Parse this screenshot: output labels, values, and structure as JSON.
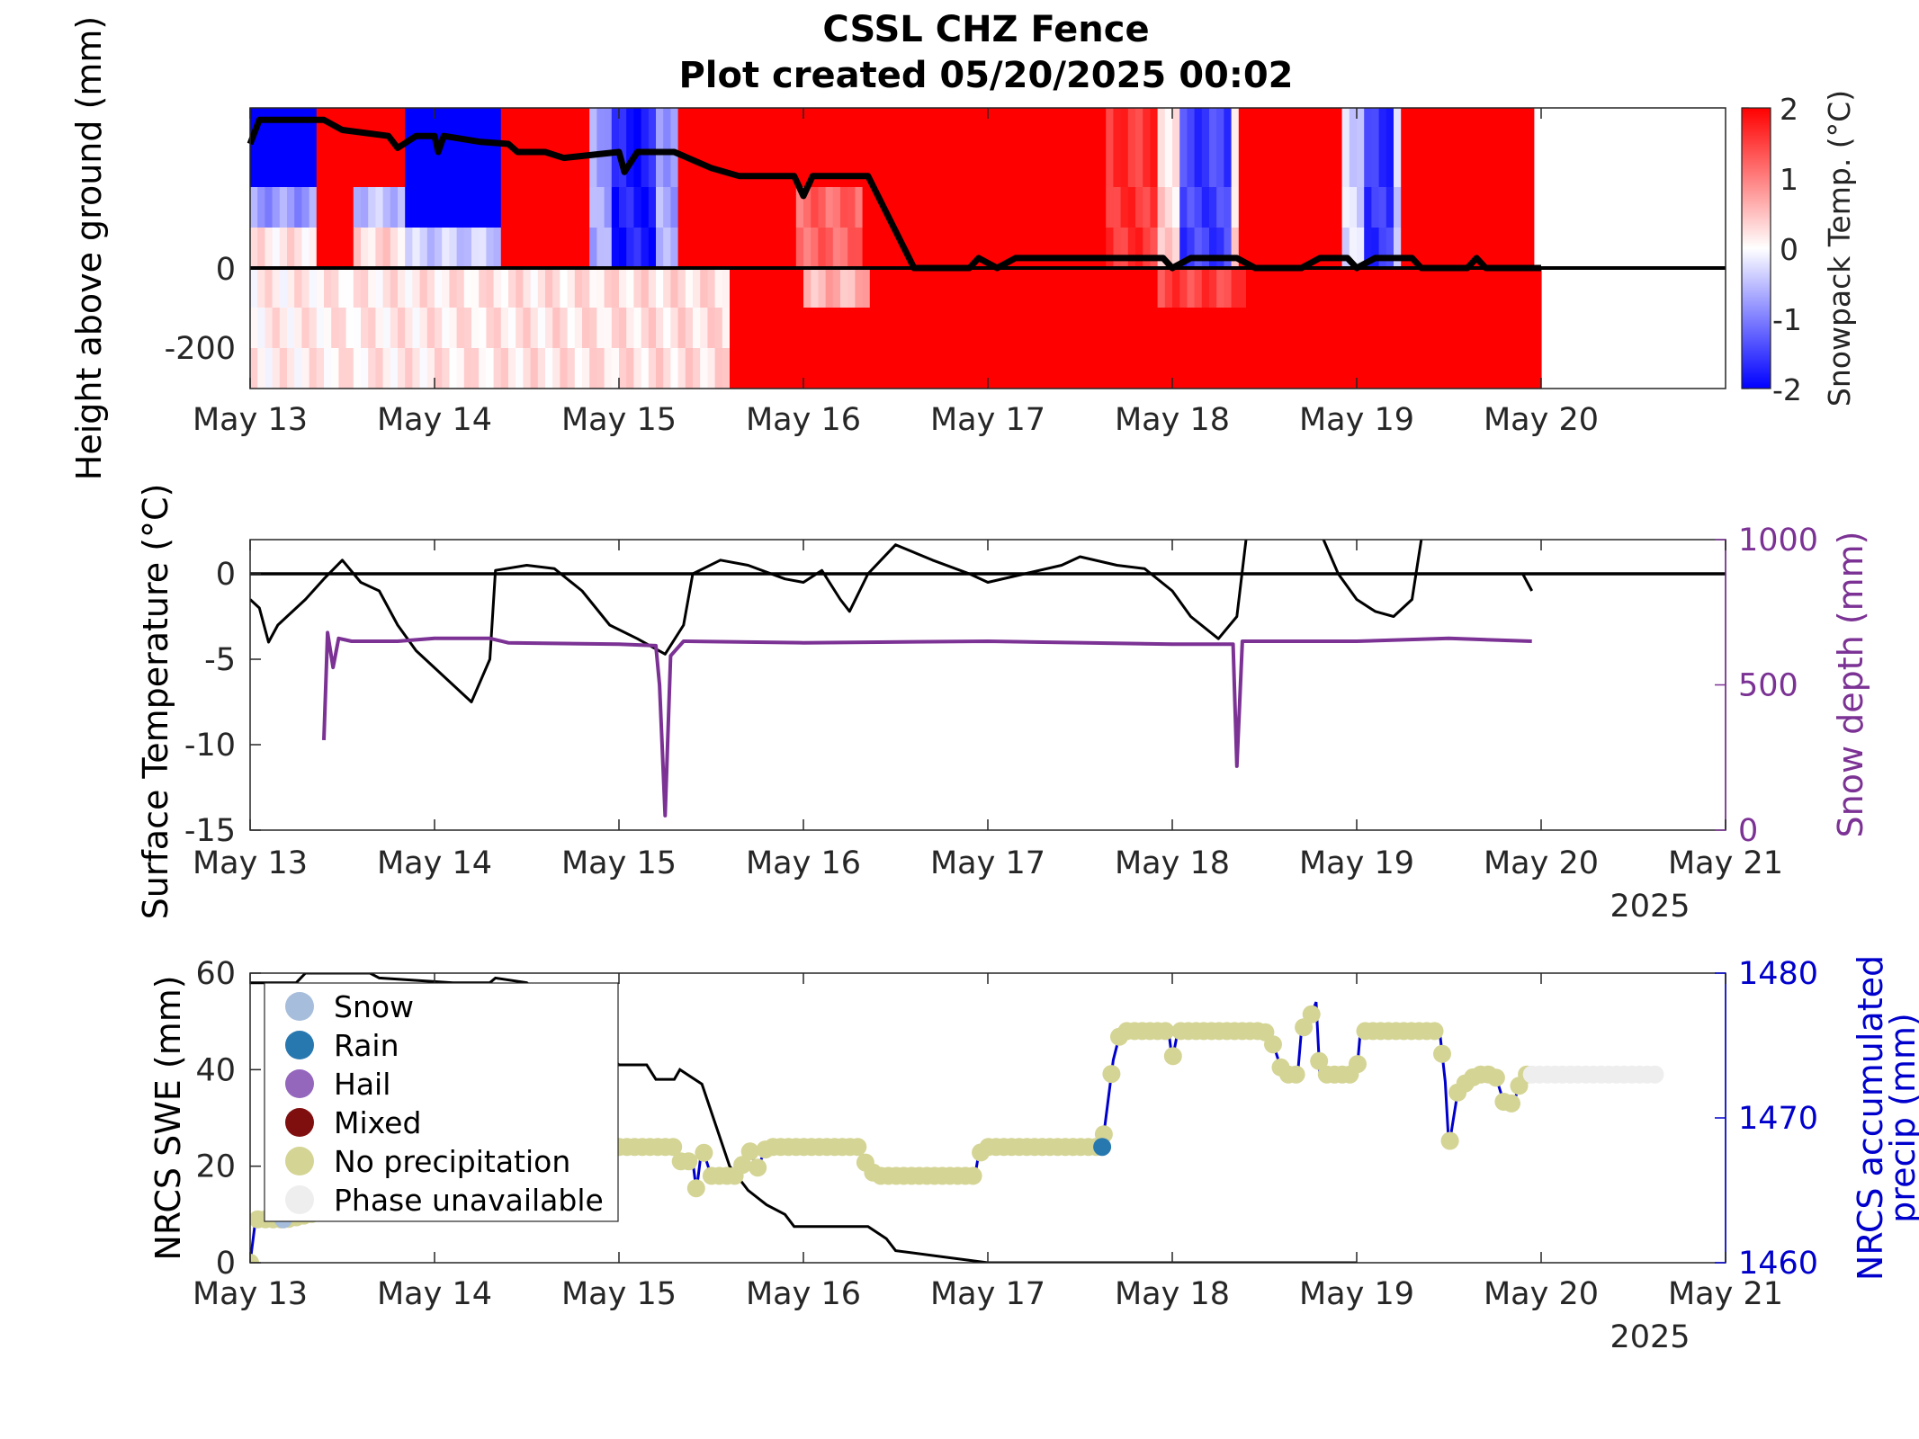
{
  "title_line1": "CSSL CHZ Fence",
  "title_line2": "Plot created 05/20/2025 00:02",
  "year_label": "2025",
  "colors": {
    "red": "#ff0000",
    "blue": "#0000ff",
    "purple": "#7b3294",
    "navy": "#0000cc",
    "black": "#000000"
  },
  "chart_data": [
    {
      "type": "heatmap",
      "ylabel": "Height above ground (mm)",
      "colorbar_label": "Snowpack Temp. (°C)",
      "colorbar_ticks": [
        "2",
        "1",
        "0",
        "-1",
        "-2"
      ],
      "clim": [
        -2,
        2
      ],
      "xlim": [
        "May 13",
        "May 21"
      ],
      "x_ticks": [
        "May 13",
        "May 14",
        "May 15",
        "May 16",
        "May 17",
        "May 18",
        "May 19",
        "May 20"
      ],
      "y_ticks": [
        "0",
        "-200"
      ],
      "ylim": [
        -300,
        400
      ],
      "snow_depth_line": [
        {
          "x": 13.0,
          "y": 310
        },
        {
          "x": 13.05,
          "y": 370
        },
        {
          "x": 13.4,
          "y": 370
        },
        {
          "x": 13.5,
          "y": 345
        },
        {
          "x": 13.75,
          "y": 330
        },
        {
          "x": 13.8,
          "y": 300
        },
        {
          "x": 13.9,
          "y": 330
        },
        {
          "x": 14.0,
          "y": 330
        },
        {
          "x": 14.02,
          "y": 290
        },
        {
          "x": 14.05,
          "y": 330
        },
        {
          "x": 14.25,
          "y": 315
        },
        {
          "x": 14.4,
          "y": 310
        },
        {
          "x": 14.45,
          "y": 290
        },
        {
          "x": 14.6,
          "y": 290
        },
        {
          "x": 14.7,
          "y": 275
        },
        {
          "x": 15.0,
          "y": 290
        },
        {
          "x": 15.03,
          "y": 240
        },
        {
          "x": 15.1,
          "y": 290
        },
        {
          "x": 15.3,
          "y": 290
        },
        {
          "x": 15.5,
          "y": 250
        },
        {
          "x": 15.65,
          "y": 230
        },
        {
          "x": 15.95,
          "y": 230
        },
        {
          "x": 16.0,
          "y": 180
        },
        {
          "x": 16.05,
          "y": 230
        },
        {
          "x": 16.35,
          "y": 230
        },
        {
          "x": 16.6,
          "y": 0
        },
        {
          "x": 16.9,
          "y": 0
        },
        {
          "x": 16.95,
          "y": 25
        },
        {
          "x": 17.05,
          "y": 0
        },
        {
          "x": 17.15,
          "y": 25
        },
        {
          "x": 17.5,
          "y": 25
        },
        {
          "x": 17.95,
          "y": 25
        },
        {
          "x": 18.0,
          "y": 0
        },
        {
          "x": 18.1,
          "y": 25
        },
        {
          "x": 18.35,
          "y": 25
        },
        {
          "x": 18.45,
          "y": 0
        },
        {
          "x": 18.7,
          "y": 0
        },
        {
          "x": 18.8,
          "y": 25
        },
        {
          "x": 18.95,
          "y": 25
        },
        {
          "x": 19.0,
          "y": 0
        },
        {
          "x": 19.1,
          "y": 25
        },
        {
          "x": 19.3,
          "y": 25
        },
        {
          "x": 19.35,
          "y": 0
        },
        {
          "x": 19.6,
          "y": 0
        },
        {
          "x": 19.65,
          "y": 25
        },
        {
          "x": 19.7,
          "y": 0
        },
        {
          "x": 20.0,
          "y": 0
        }
      ]
    },
    {
      "type": "line",
      "ylabel": "Surface Temperature (°C)",
      "y2label": "Snow depth (mm)",
      "xlim": [
        "May 13",
        "May 21"
      ],
      "x_ticks": [
        "May 13",
        "May 14",
        "May 15",
        "May 16",
        "May 17",
        "May 18",
        "May 19",
        "May 20",
        "May 21"
      ],
      "ylim": [
        -15,
        2
      ],
      "y_ticks": [
        "0",
        "-5",
        "-10",
        "-15"
      ],
      "y2lim": [
        0,
        1000
      ],
      "y2_ticks": [
        "1000",
        "500",
        "0"
      ],
      "series": [
        {
          "axis": "left",
          "values": [
            {
              "x": 13.0,
              "y": -1.5
            },
            {
              "x": 13.05,
              "y": -2.0
            },
            {
              "x": 13.1,
              "y": -4.0
            },
            {
              "x": 13.15,
              "y": -3.0
            },
            {
              "x": 13.2,
              "y": -2.5
            },
            {
              "x": 13.3,
              "y": -1.5
            },
            {
              "x": 13.4,
              "y": -0.3
            },
            {
              "x": 13.5,
              "y": 0.8
            },
            {
              "x": 13.6,
              "y": -0.5
            },
            {
              "x": 13.7,
              "y": -1.0
            },
            {
              "x": 13.8,
              "y": -3.0
            },
            {
              "x": 13.9,
              "y": -4.5
            },
            {
              "x": 14.0,
              "y": -5.5
            },
            {
              "x": 14.1,
              "y": -6.5
            },
            {
              "x": 14.2,
              "y": -7.5
            },
            {
              "x": 14.3,
              "y": -5.0
            },
            {
              "x": 14.33,
              "y": 0.2
            },
            {
              "x": 14.5,
              "y": 0.5
            },
            {
              "x": 14.65,
              "y": 0.3
            },
            {
              "x": 14.8,
              "y": -1.0
            },
            {
              "x": 14.95,
              "y": -3.0
            },
            {
              "x": 15.1,
              "y": -3.8
            },
            {
              "x": 15.25,
              "y": -4.7
            },
            {
              "x": 15.35,
              "y": -3.0
            },
            {
              "x": 15.4,
              "y": 0.0
            },
            {
              "x": 15.55,
              "y": 0.8
            },
            {
              "x": 15.7,
              "y": 0.5
            },
            {
              "x": 15.9,
              "y": -0.3
            },
            {
              "x": 16.0,
              "y": -0.5
            },
            {
              "x": 16.1,
              "y": 0.2
            },
            {
              "x": 16.2,
              "y": -1.5
            },
            {
              "x": 16.25,
              "y": -2.2
            },
            {
              "x": 16.35,
              "y": 0.0
            },
            {
              "x": 16.5,
              "y": 1.7
            },
            {
              "x": 16.7,
              "y": 0.8
            },
            {
              "x": 16.9,
              "y": 0.0
            },
            {
              "x": 17.0,
              "y": -0.5
            },
            {
              "x": 17.2,
              "y": 0.0
            },
            {
              "x": 17.4,
              "y": 0.5
            },
            {
              "x": 17.5,
              "y": 1.0
            },
            {
              "x": 17.7,
              "y": 0.5
            },
            {
              "x": 17.85,
              "y": 0.3
            },
            {
              "x": 18.0,
              "y": -1.0
            },
            {
              "x": 18.1,
              "y": -2.5
            },
            {
              "x": 18.25,
              "y": -3.8
            },
            {
              "x": 18.35,
              "y": -2.5
            },
            {
              "x": 18.4,
              "y": 2.0
            }
          ]
        },
        {
          "axis": "left",
          "values": [
            {
              "x": 18.82,
              "y": 2.0
            },
            {
              "x": 18.9,
              "y": 0.0
            },
            {
              "x": 19.0,
              "y": -1.5
            },
            {
              "x": 19.1,
              "y": -2.2
            },
            {
              "x": 19.2,
              "y": -2.5
            },
            {
              "x": 19.3,
              "y": -1.5
            },
            {
              "x": 19.35,
              "y": 2.0
            }
          ]
        },
        {
          "axis": "left",
          "values": [
            {
              "x": 19.9,
              "y": 0.0
            },
            {
              "x": 19.95,
              "y": -1.0
            }
          ]
        },
        {
          "axis": "right",
          "values": [
            {
              "x": 13.4,
              "y": 310
            },
            {
              "x": 13.42,
              "y": 680
            },
            {
              "x": 13.45,
              "y": 560
            },
            {
              "x": 13.48,
              "y": 660
            },
            {
              "x": 13.55,
              "y": 650
            },
            {
              "x": 13.8,
              "y": 650
            },
            {
              "x": 14.0,
              "y": 660
            },
            {
              "x": 14.3,
              "y": 660
            },
            {
              "x": 14.4,
              "y": 645
            },
            {
              "x": 15.0,
              "y": 640
            },
            {
              "x": 15.2,
              "y": 635
            },
            {
              "x": 15.22,
              "y": 500
            },
            {
              "x": 15.25,
              "y": 50
            },
            {
              "x": 15.28,
              "y": 600
            },
            {
              "x": 15.35,
              "y": 650
            },
            {
              "x": 16.0,
              "y": 645
            },
            {
              "x": 17.0,
              "y": 650
            },
            {
              "x": 18.0,
              "y": 640
            },
            {
              "x": 18.33,
              "y": 640
            },
            {
              "x": 18.35,
              "y": 220
            },
            {
              "x": 18.38,
              "y": 650
            },
            {
              "x": 19.0,
              "y": 650
            },
            {
              "x": 19.5,
              "y": 660
            },
            {
              "x": 19.95,
              "y": 650
            }
          ]
        }
      ]
    },
    {
      "type": "scatter",
      "ylabel": "NRCS SWE (mm)",
      "y2label_line1": "NRCS accumulated",
      "y2label_line2": "precip (mm)",
      "xlim": [
        "May 13",
        "May 21"
      ],
      "x_ticks": [
        "May 13",
        "May 14",
        "May 15",
        "May 16",
        "May 17",
        "May 18",
        "May 19",
        "May 20",
        "May 21"
      ],
      "ylim": [
        0,
        60
      ],
      "y_ticks": [
        "60",
        "40",
        "20",
        "0"
      ],
      "y2lim": [
        1460,
        1480
      ],
      "y2_ticks": [
        "1480",
        "1470",
        "1460"
      ],
      "legend": [
        {
          "label": "Snow",
          "color": "#a6bddb"
        },
        {
          "label": "Rain",
          "color": "#2878b0"
        },
        {
          "label": "Hail",
          "color": "#9467bd"
        },
        {
          "label": "Mixed",
          "color": "#7f0f0f"
        },
        {
          "label": "No precipitation",
          "color": "#d4d494"
        },
        {
          "label": "Phase unavailable",
          "color": "#eeeeee"
        }
      ],
      "legend_position": "top-left",
      "swe_series": [
        {
          "x": 13.0,
          "y": 58
        },
        {
          "x": 13.25,
          "y": 58
        },
        {
          "x": 13.3,
          "y": 60
        },
        {
          "x": 13.65,
          "y": 60
        },
        {
          "x": 13.7,
          "y": 59
        },
        {
          "x": 14.1,
          "y": 58
        },
        {
          "x": 14.3,
          "y": 58
        },
        {
          "x": 14.33,
          "y": 59
        },
        {
          "x": 14.5,
          "y": 58
        },
        {
          "x": 15.0,
          "y": 41
        },
        {
          "x": 15.15,
          "y": 41
        },
        {
          "x": 15.2,
          "y": 38
        },
        {
          "x": 15.3,
          "y": 38
        },
        {
          "x": 15.33,
          "y": 40
        },
        {
          "x": 15.45,
          "y": 37
        },
        {
          "x": 15.6,
          "y": 20
        },
        {
          "x": 15.7,
          "y": 15
        },
        {
          "x": 15.8,
          "y": 12
        },
        {
          "x": 15.9,
          "y": 10
        },
        {
          "x": 15.95,
          "y": 7.5
        },
        {
          "x": 16.35,
          "y": 7.5
        },
        {
          "x": 16.45,
          "y": 5
        },
        {
          "x": 16.5,
          "y": 2.5
        },
        {
          "x": 17.0,
          "y": 0
        },
        {
          "x": 19.0,
          "y": 0
        }
      ],
      "precip_series": [
        {
          "x": 13.0,
          "y": 1460
        },
        {
          "x": 13.03,
          "y": 1463
        },
        {
          "x": 13.15,
          "y": 1463
        },
        {
          "x": 13.2,
          "y": 1463
        },
        {
          "x": 15.0,
          "y": 1468
        },
        {
          "x": 15.3,
          "y": 1468
        },
        {
          "x": 15.33,
          "y": 1467
        },
        {
          "x": 15.4,
          "y": 1467
        },
        {
          "x": 15.42,
          "y": 1465
        },
        {
          "x": 15.45,
          "y": 1468
        },
        {
          "x": 15.5,
          "y": 1466
        },
        {
          "x": 15.65,
          "y": 1466
        },
        {
          "x": 15.7,
          "y": 1468
        },
        {
          "x": 15.75,
          "y": 1466.5
        },
        {
          "x": 15.8,
          "y": 1468
        },
        {
          "x": 16.3,
          "y": 1468
        },
        {
          "x": 16.35,
          "y": 1466.5
        },
        {
          "x": 16.4,
          "y": 1466
        },
        {
          "x": 16.93,
          "y": 1466
        },
        {
          "x": 16.95,
          "y": 1467.5
        },
        {
          "x": 17.0,
          "y": 1468
        },
        {
          "x": 17.62,
          "y": 1468
        },
        {
          "x": 17.68,
          "y": 1474
        },
        {
          "x": 17.72,
          "y": 1476
        },
        {
          "x": 17.98,
          "y": 1476
        },
        {
          "x": 18.0,
          "y": 1474
        },
        {
          "x": 18.03,
          "y": 1476
        },
        {
          "x": 18.5,
          "y": 1476
        },
        {
          "x": 18.55,
          "y": 1475
        },
        {
          "x": 18.6,
          "y": 1473
        },
        {
          "x": 18.68,
          "y": 1473
        },
        {
          "x": 18.7,
          "y": 1476
        },
        {
          "x": 18.75,
          "y": 1477
        },
        {
          "x": 18.78,
          "y": 1478
        },
        {
          "x": 18.8,
          "y": 1473
        },
        {
          "x": 18.85,
          "y": 1473
        },
        {
          "x": 18.88,
          "y": 1473
        },
        {
          "x": 19.0,
          "y": 1473
        },
        {
          "x": 19.02,
          "y": 1476
        },
        {
          "x": 19.45,
          "y": 1476
        },
        {
          "x": 19.48,
          "y": 1472.5
        },
        {
          "x": 19.5,
          "y": 1468
        },
        {
          "x": 19.55,
          "y": 1472
        },
        {
          "x": 19.65,
          "y": 1473
        },
        {
          "x": 19.75,
          "y": 1473
        },
        {
          "x": 19.8,
          "y": 1471
        },
        {
          "x": 19.85,
          "y": 1471
        },
        {
          "x": 19.9,
          "y": 1473
        },
        {
          "x": 19.92,
          "y": 1473
        }
      ],
      "unavailable_range": [
        19.95,
        20.65
      ],
      "unavailable_y": 1473,
      "rain_points": [
        {
          "x": 17.62,
          "y": 1468
        }
      ],
      "snow_points": [
        {
          "x": 13.18,
          "y": 1463
        }
      ]
    }
  ]
}
